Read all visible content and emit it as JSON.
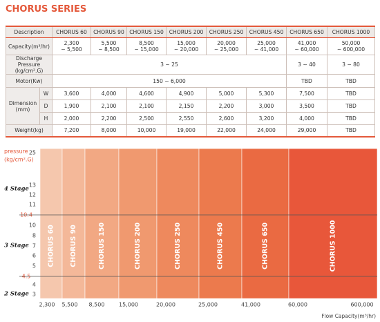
{
  "header": {
    "title": "CHORUS SERIES"
  },
  "table": {
    "columns": [
      "Description",
      "CHORUS 60",
      "CHORUS 90",
      "CHORUS 150",
      "CHORUS 200",
      "CHORUS 250",
      "CHORUS 450",
      "CHORUS 650",
      "CHORUS 1000"
    ],
    "capacity": {
      "label": "Capacity(m³/hr)",
      "values": [
        [
          "2,300",
          "~ 5,500"
        ],
        [
          "5,500",
          "~ 8,500"
        ],
        [
          "8,500",
          "~ 15,000"
        ],
        [
          "15,000",
          "~ 20,000"
        ],
        [
          "20,000",
          "~ 25,000"
        ],
        [
          "25,000",
          "~ 41,000"
        ],
        [
          "41,000",
          "~ 60,000"
        ],
        [
          "50,000",
          "~ 600,000"
        ]
      ]
    },
    "pressure": {
      "label": [
        "Discharge Pressure",
        "(kg/cm².G)"
      ],
      "values": [
        "3 ~ 25",
        "3 ~ 40",
        "3 ~ 80"
      ]
    },
    "motor": {
      "label": "Motor(Kw)",
      "values": [
        "150 ~ 6,000",
        "TBD",
        "TBD"
      ]
    },
    "dimension": {
      "label": [
        "Dimension",
        "(mm)"
      ],
      "rows": [
        {
          "axis": "W",
          "values": [
            "3,600",
            "4,000",
            "4,600",
            "4,900",
            "5,000",
            "5,300",
            "7,500",
            "TBD"
          ]
        },
        {
          "axis": "D",
          "values": [
            "1,900",
            "2,100",
            "2,100",
            "2,150",
            "2,200",
            "3,000",
            "3,500",
            "TBD"
          ]
        },
        {
          "axis": "H",
          "values": [
            "2,000",
            "2,200",
            "2,500",
            "2,550",
            "2,600",
            "3,200",
            "4,000",
            "TBD"
          ]
        }
      ]
    },
    "weight": {
      "label": "Weight(kg)",
      "values": [
        "7,200",
        "8,000",
        "10,000",
        "19,000",
        "22,000",
        "24,000",
        "29,000",
        "TBD"
      ]
    }
  },
  "chart": {
    "y_label": [
      "pressure",
      "(kg/cm².G)"
    ],
    "y_ticks": [
      "25",
      "13",
      "12",
      "11",
      "10.4",
      "10",
      "8",
      "7",
      "6",
      "5",
      "4.5",
      "4",
      "3"
    ],
    "stages": [
      "4 Stage",
      "3 Stage",
      "2 Stage"
    ],
    "bands": [
      "CHORUS 60",
      "CHORUS 90",
      "CHORUS 150",
      "CHORUS 200",
      "CHORUS 250",
      "CHORUS 450",
      "CHORUS 650",
      "CHORUS 1000"
    ],
    "x_ticks": [
      "2,300",
      "5,500",
      "8,500",
      "15,000",
      "20,000",
      "25,000",
      "41,000",
      "60,000",
      "600,000"
    ],
    "x_label": "Flow Capacity(m³/hr)"
  }
}
